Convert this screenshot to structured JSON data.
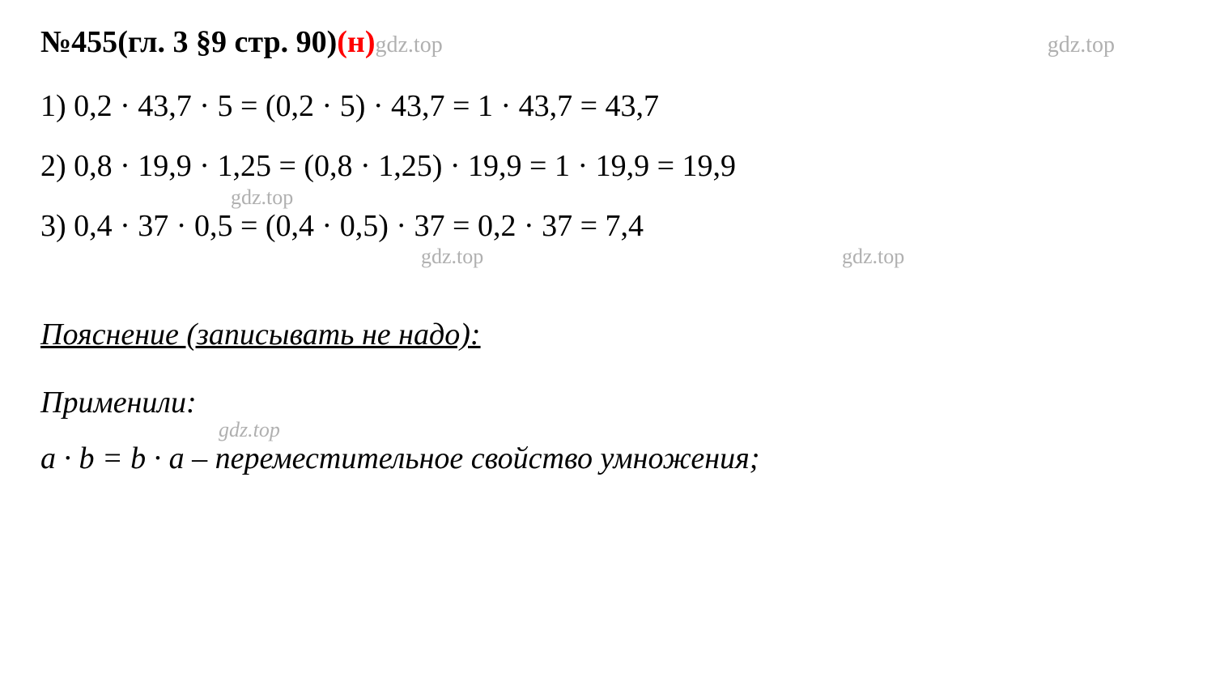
{
  "header": {
    "number_prefix": "№455",
    "chapter_ref": " (гл. 3 §9 стр. 90) ",
    "suffix": "(н)",
    "watermark": "gdz.top",
    "watermark_right": "gdz.top"
  },
  "lines": {
    "line1": "1) 0,2 · 43,7 · 5 = (0,2 · 5) · 43,7 = 1 · 43,7 = 43,7",
    "line2": "2) 0,8 · 19,9 · 1,25 = (0,8 · 1,25) · 19,9 = 1 · 19,9 = 19,9",
    "line3": "3) 0,4 · 37 · 0,5 = (0,4 · 0,5) · 37 = 0,2 · 37 = 7,4"
  },
  "watermarks": {
    "wm2": "gdz.top",
    "wm3a": "gdz.top",
    "wm3b": "gdz.top",
    "wm4": "gdz.top"
  },
  "explanation": {
    "title": "Пояснение (записывать не надо):",
    "applied": "Применили:",
    "formula": "a · b = b · a – переместительное свойство умножения;"
  },
  "colors": {
    "text": "#000000",
    "red": "#ff0000",
    "watermark": "#b0b0b0",
    "background": "#ffffff"
  },
  "typography": {
    "font_family": "Times New Roman",
    "header_size_pt": 28,
    "body_size_pt": 28,
    "watermark_size_pt": 20
  }
}
